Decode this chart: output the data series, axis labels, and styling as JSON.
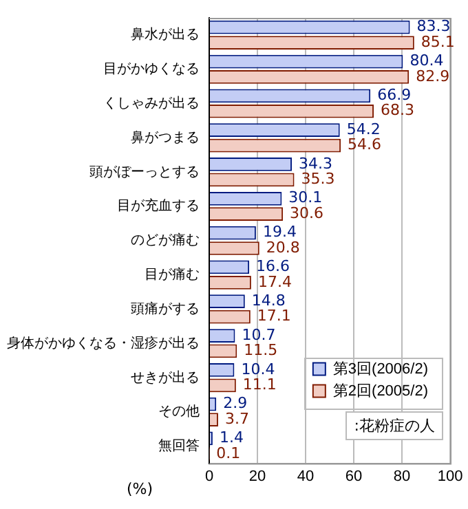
{
  "chart_data": {
    "type": "bar",
    "orientation": "horizontal",
    "xlabel": "(%)",
    "categories": [
      "鼻水が出る",
      "目がかゆくなる",
      "くしゃみが出る",
      "鼻がつまる",
      "頭がぼーっとする",
      "目が充血する",
      "のどが痛む",
      "目が痛む",
      "頭痛がする",
      "身体がかゆくなる・湿疹が出る",
      "せきが出る",
      "その他",
      "無回答"
    ],
    "series": [
      {
        "name": "第3回(2006/2)",
        "color": "#c3cdf5",
        "values": [
          83.3,
          80.4,
          66.9,
          54.2,
          34.3,
          30.1,
          19.4,
          16.6,
          14.8,
          10.7,
          10.4,
          2.9,
          1.4
        ]
      },
      {
        "name": "第2回(2005/2)",
        "color": "#f2cdc3",
        "values": [
          85.1,
          82.9,
          68.3,
          54.6,
          35.3,
          30.6,
          20.8,
          17.4,
          17.1,
          11.5,
          11.1,
          3.7,
          0.1
        ]
      }
    ],
    "xlim": [
      0,
      100
    ],
    "xticks": [
      0,
      20,
      40,
      60,
      80,
      100
    ],
    "grid": "x",
    "data_labels": true,
    "legend": "bottom right",
    "annotations": [
      ":花粉症の人"
    ]
  }
}
